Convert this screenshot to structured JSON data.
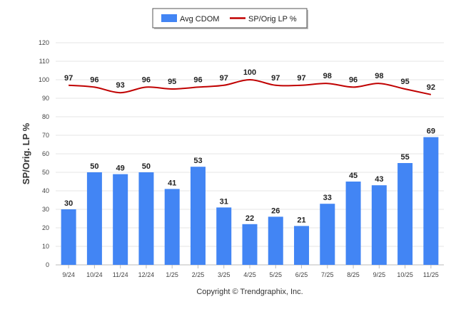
{
  "chart_data": {
    "type": "bar",
    "categories": [
      "9/24",
      "10/24",
      "11/24",
      "12/24",
      "1/25",
      "2/25",
      "3/25",
      "4/25",
      "5/25",
      "6/25",
      "7/25",
      "8/25",
      "9/25",
      "10/25",
      "11/25"
    ],
    "series": [
      {
        "name": "Avg CDOM",
        "type": "bar",
        "color": "#4285f4",
        "values": [
          30,
          50,
          49,
          50,
          41,
          53,
          31,
          22,
          26,
          21,
          33,
          45,
          43,
          55,
          69
        ]
      },
      {
        "name": "SP/Orig LP %",
        "type": "line",
        "color": "#c00000",
        "values": [
          97,
          96,
          93,
          96,
          95,
          96,
          97,
          100,
          97,
          97,
          98,
          96,
          98,
          95,
          92
        ]
      }
    ],
    "ylabel": "SP/Orig. LP %",
    "ylim": [
      0,
      120
    ],
    "yticks": [
      0,
      10,
      20,
      30,
      40,
      50,
      60,
      70,
      80,
      90,
      100,
      110,
      120
    ],
    "grid": true,
    "legend_position": "top-center"
  },
  "footer": {
    "copyright": "Copyright © Trendgraphix, Inc."
  }
}
